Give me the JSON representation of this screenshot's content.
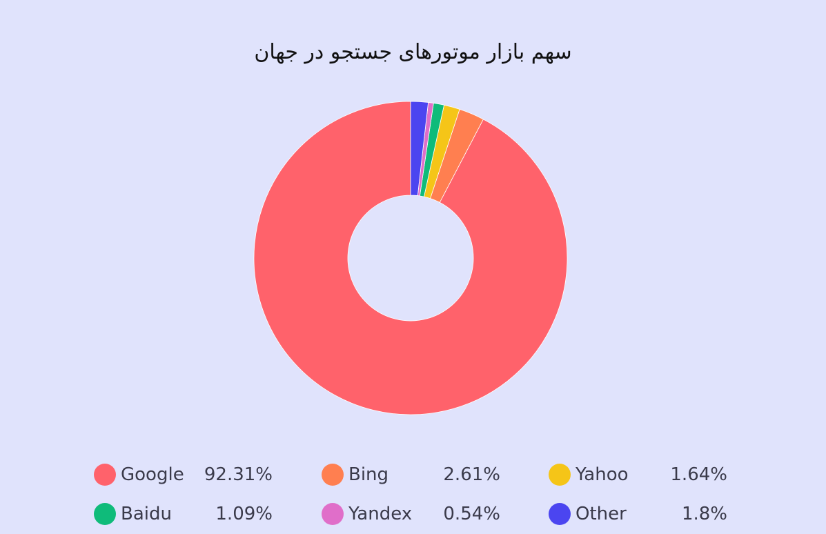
{
  "chart_data": {
    "type": "pie",
    "title": "سهم بازار موتورهای جستجو در جهان",
    "donut": true,
    "categories": [
      "Google",
      "Bing",
      "Yahoo",
      "Baidu",
      "Yandex",
      "Other"
    ],
    "values": [
      92.31,
      2.61,
      1.64,
      1.09,
      0.54,
      1.8
    ],
    "value_labels": [
      "92.31%",
      "2.61%",
      "1.64%",
      "1.09%",
      "0.54%",
      "1.8%"
    ],
    "colors": [
      "#ff626b",
      "#ff7f50",
      "#f5c518",
      "#0fbb7a",
      "#e06ec9",
      "#4b45f0"
    ],
    "legend_position": "bottom"
  }
}
